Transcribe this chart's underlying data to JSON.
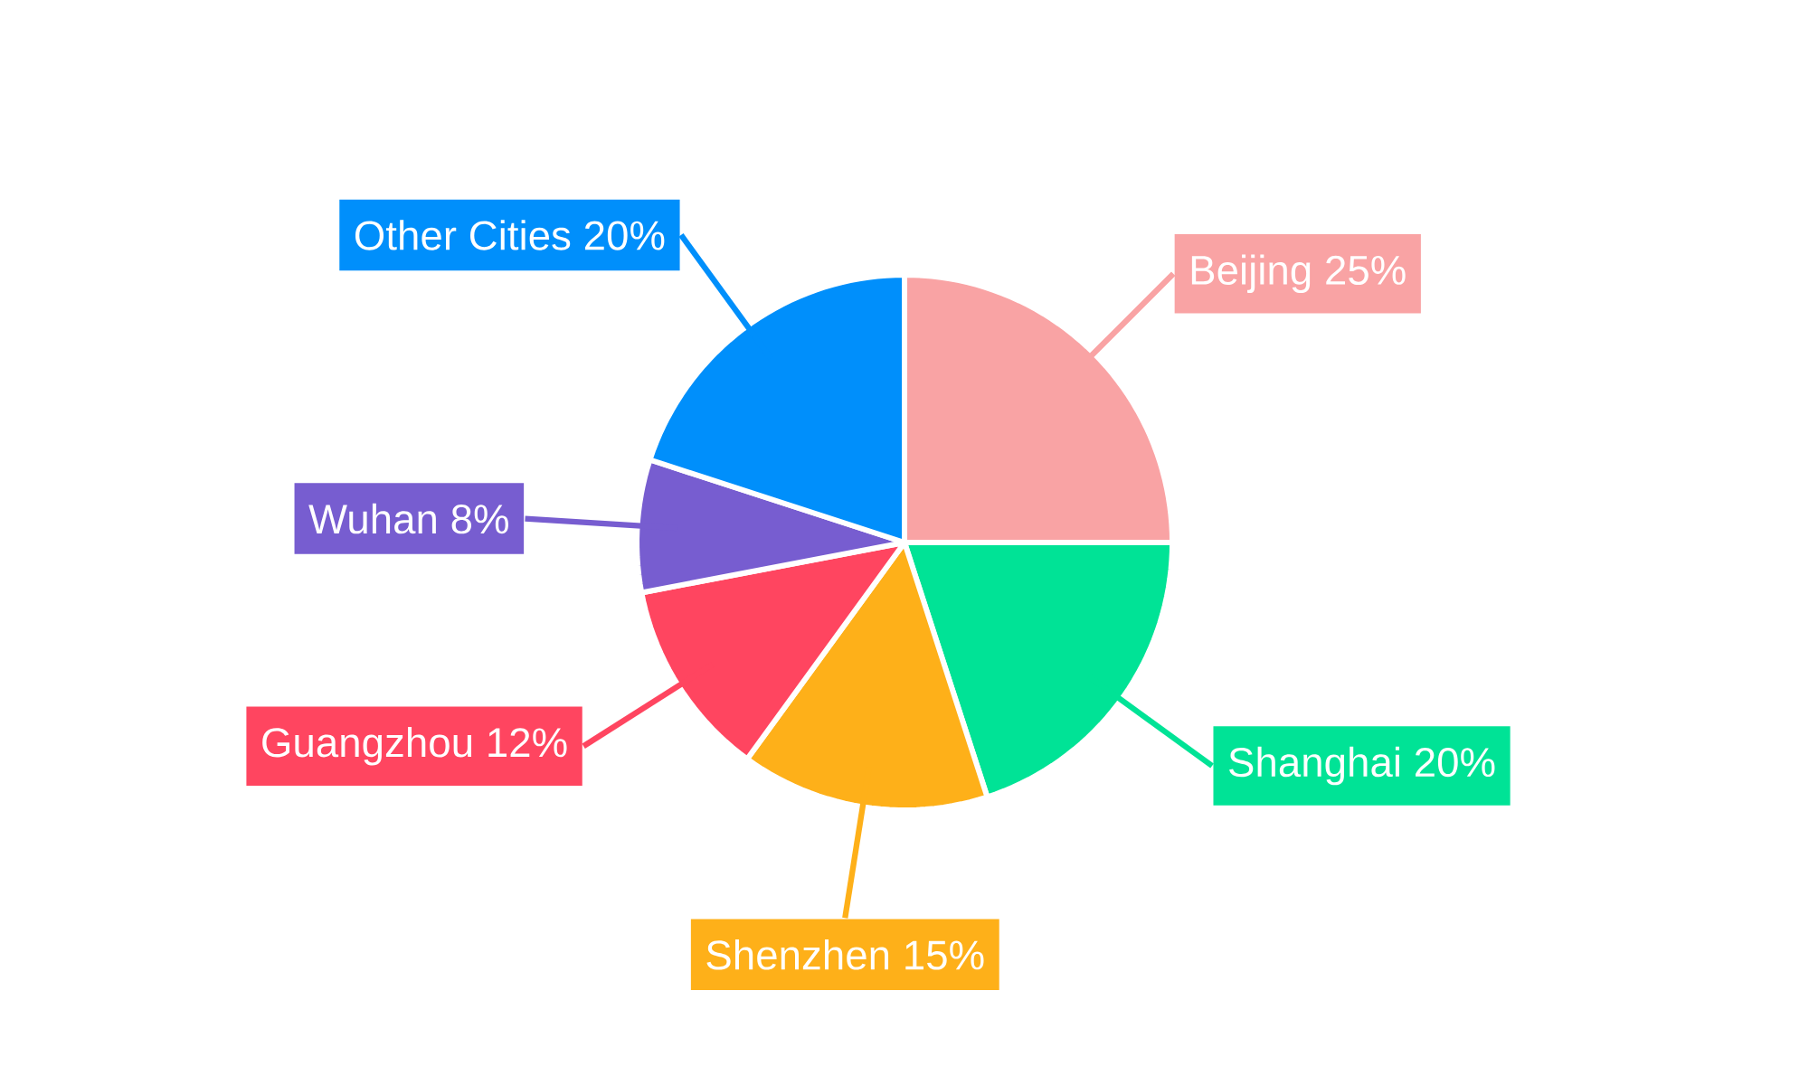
{
  "chart_data": {
    "type": "pie",
    "categories": [
      "Beijing",
      "Shanghai",
      "Shenzhen",
      "Guangzhou",
      "Wuhan",
      "Other Cities"
    ],
    "values": [
      25,
      20,
      15,
      12,
      8,
      20
    ],
    "value_labels": [
      "25%",
      "20%",
      "15%",
      "12%",
      "8%",
      "20%"
    ],
    "colors": [
      "#f9a3a4",
      "#00e396",
      "#feb019",
      "#ff4560",
      "#775dd0",
      "#008ffb"
    ]
  }
}
